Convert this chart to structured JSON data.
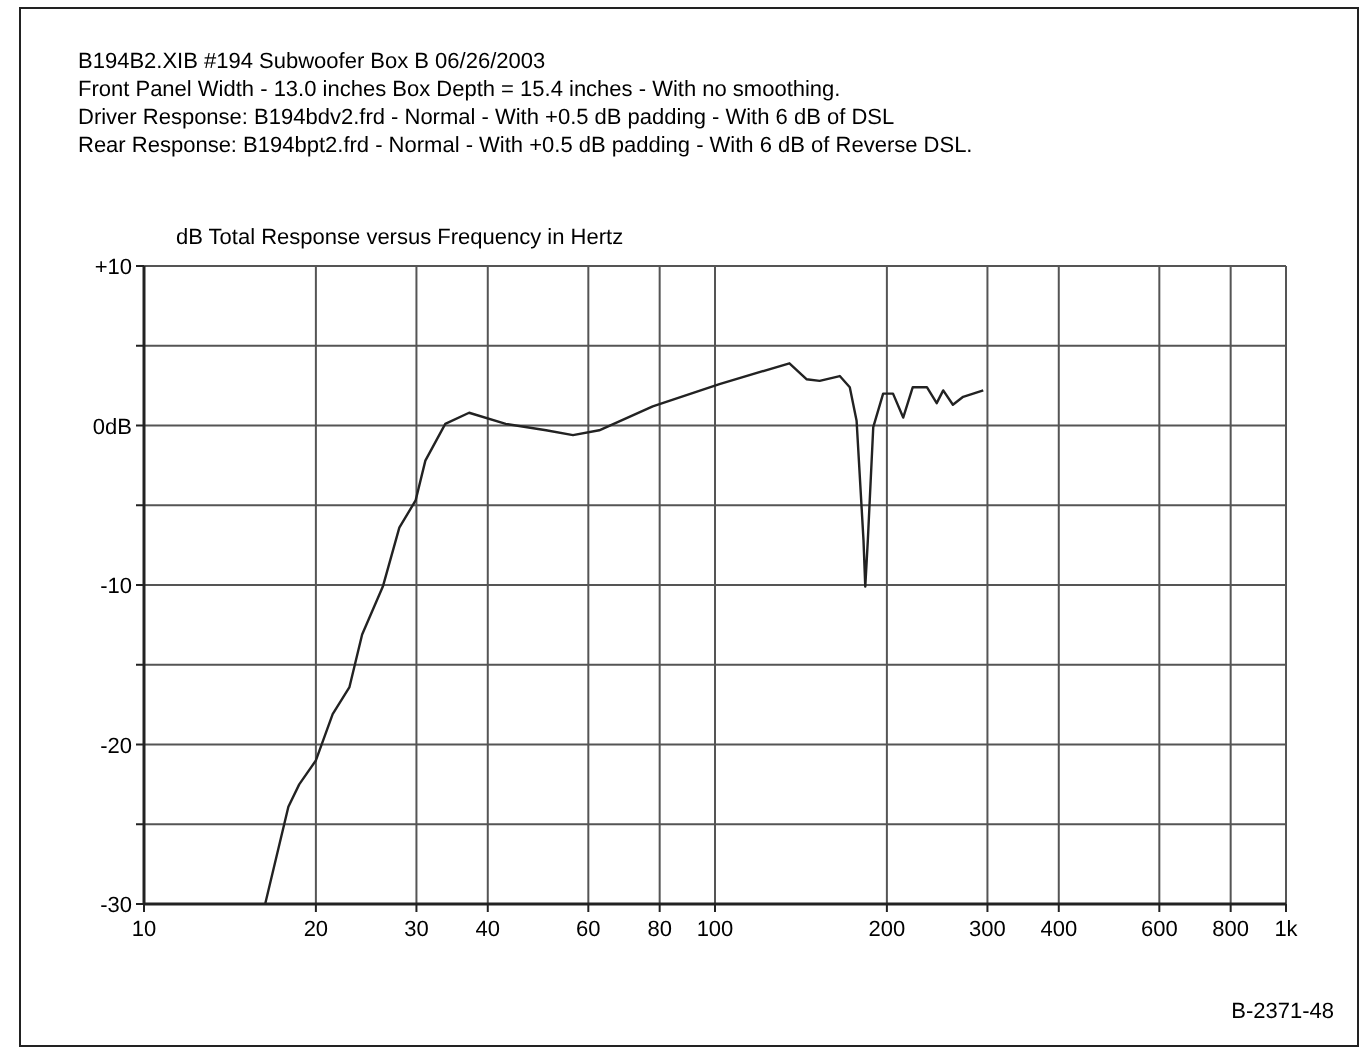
{
  "chart_data": {
    "type": "line",
    "title": "dB Total Response versus Frequency in Hertz",
    "annotations": [
      "B194B2.XIB    #194 Subwoofer Box B          06/26/2003",
      "Front Panel Width - 13.0 inches    Box Depth = 15.4 inches - With no smoothing.",
      "Driver Response: B194bdv2.frd - Normal - With +0.5 dB padding - With 6 dB of DSL",
      "Rear Response: B194bpt2.frd - Normal - With +0.5 dB padding - With 6 dB of Reverse DSL.",
      "B-2371-48"
    ],
    "log": "x",
    "xlim": [
      10,
      1000
    ],
    "xticks": [
      10,
      20,
      30,
      40,
      60,
      80,
      100,
      200,
      300,
      400,
      600,
      800,
      {
        "value": 1000,
        "label": "1k"
      }
    ],
    "ylim": [
      -30,
      10
    ],
    "yticks": [
      {
        "value": -30,
        "label": "-30"
      },
      {
        "value": -25,
        "label": null
      },
      {
        "value": -20,
        "label": "-20"
      },
      {
        "value": -15,
        "label": null
      },
      {
        "value": -10,
        "label": "-10"
      },
      {
        "value": -5,
        "label": null
      },
      {
        "value": 0,
        "label": "0dB"
      },
      {
        "value": 5,
        "label": null
      },
      {
        "value": 10,
        "label": "+10"
      }
    ],
    "grid": true,
    "line_style": "solid",
    "series": [
      {
        "color": "#222222",
        "x": [
          16.3,
          17.9,
          18.7,
          20.0,
          21.4,
          22.9,
          24.1,
          26.2,
          28.0,
          29.9,
          31.1,
          33.7,
          37.1,
          43.0,
          50.6,
          56.4,
          62.7,
          77.8,
          101.8,
          135,
          144.6,
          152.5,
          165.4,
          172.2,
          177,
          182,
          183.3,
          185.2,
          189.3,
          197,
          205,
          213.6,
          222,
          235,
          244.5,
          251,
          261,
          272,
          295
        ],
        "values": [
          -30,
          -23.9,
          -22.5,
          -21.0,
          -18.1,
          -16.4,
          -13.1,
          -10.1,
          -6.4,
          -4.7,
          -2.2,
          0.1,
          0.8,
          0.1,
          -0.3,
          -0.6,
          -0.3,
          1.2,
          2.6,
          3.9,
          2.9,
          2.8,
          3.1,
          2.4,
          0.3,
          -7.2,
          -10.1,
          -7.2,
          -0.1,
          2.0,
          2.0,
          0.5,
          2.4,
          2.4,
          1.4,
          2.2,
          1.3,
          1.8,
          2.2
        ]
      }
    ]
  }
}
